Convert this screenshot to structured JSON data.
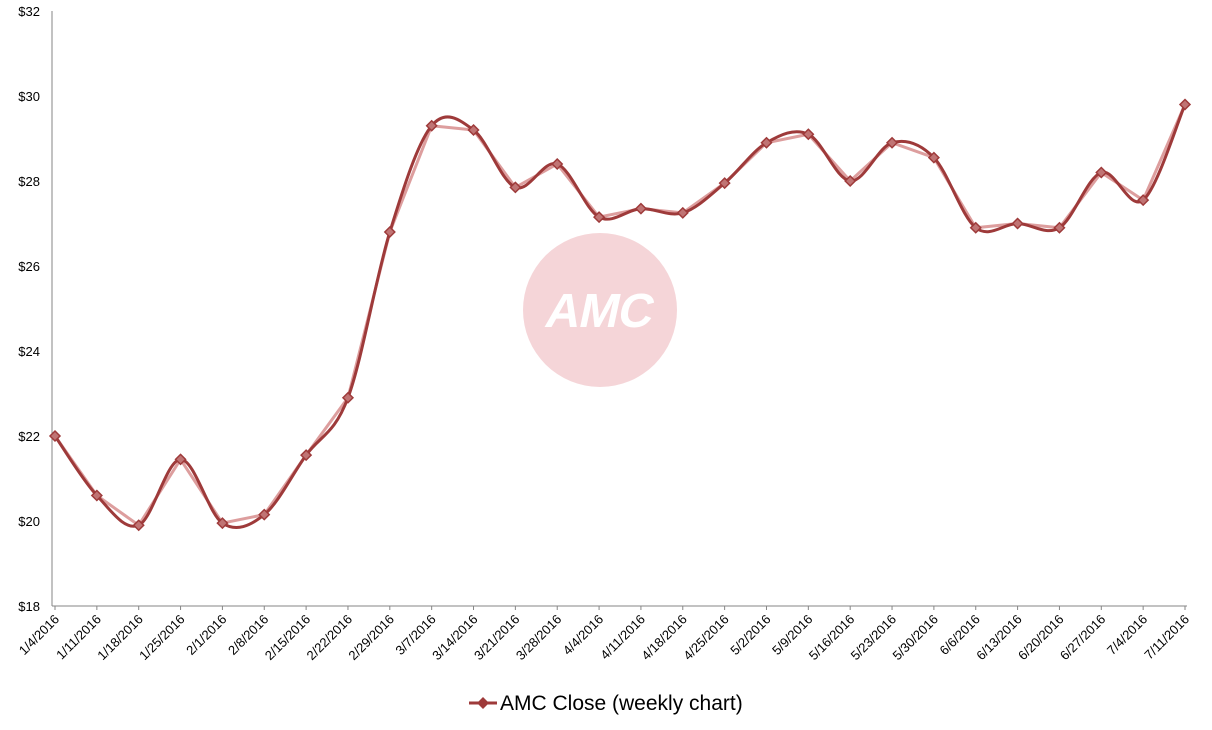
{
  "chart_data": {
    "type": "line",
    "title": "",
    "xlabel": "",
    "ylabel": "",
    "ylim": [
      18,
      32
    ],
    "y_ticks": [
      "$18",
      "$20",
      "$22",
      "$24",
      "$26",
      "$28",
      "$30",
      "$32"
    ],
    "y_tick_values": [
      18,
      20,
      22,
      24,
      26,
      28,
      30,
      32
    ],
    "grid": false,
    "legend_position": "bottom",
    "categories": [
      "1/4/2016",
      "1/11/2016",
      "1/18/2016",
      "1/25/2016",
      "2/1/2016",
      "2/8/2016",
      "2/15/2016",
      "2/22/2016",
      "2/29/2016",
      "3/7/2016",
      "3/14/2016",
      "3/21/2016",
      "3/28/2016",
      "4/4/2016",
      "4/11/2016",
      "4/18/2016",
      "4/25/2016",
      "5/2/2016",
      "5/9/2016",
      "5/16/2016",
      "5/23/2016",
      "5/30/2016",
      "6/6/2016",
      "6/13/2016",
      "6/20/2016",
      "6/27/2016",
      "7/4/2016",
      "7/11/2016"
    ],
    "series": [
      {
        "name": "AMC Close (weekly chart)",
        "color": "#9e3a3a",
        "values": [
          22.0,
          20.6,
          19.9,
          21.45,
          19.95,
          20.15,
          21.55,
          22.9,
          26.8,
          29.3,
          29.2,
          27.85,
          28.4,
          27.15,
          27.35,
          27.25,
          27.95,
          28.9,
          29.1,
          28.0,
          28.9,
          28.55,
          26.9,
          27.0,
          26.9,
          28.2,
          27.55,
          29.8
        ]
      }
    ],
    "watermark": {
      "text": "AMC",
      "circle_color": "#f5d5d8"
    }
  }
}
